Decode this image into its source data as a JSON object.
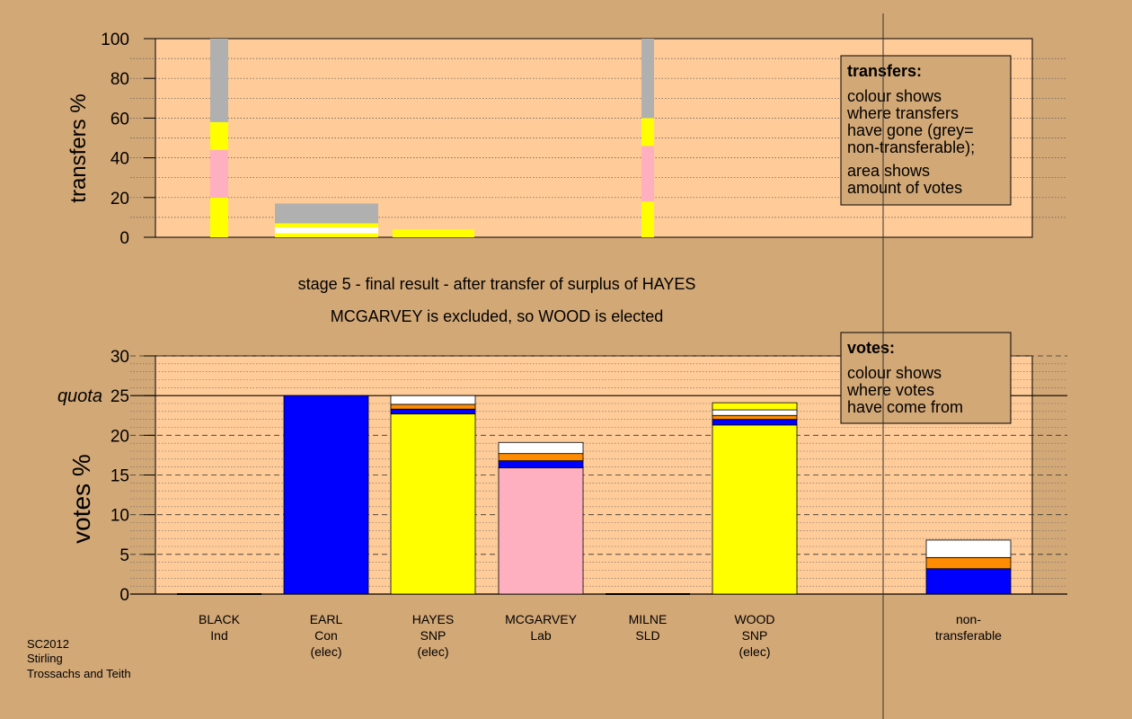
{
  "colors": {
    "page_bg": "#d3a877",
    "plot_bg": "#ffcc99",
    "frame": "#000000",
    "grey": "#b0b0b0",
    "yellow": "#ffff00",
    "pink": "#ffb0c0",
    "blue": "#0000ff",
    "orange": "#ff8c00",
    "white": "#ffffff"
  },
  "chart_data": [
    {
      "type": "bar",
      "variant": "stacked-width",
      "ylabel": "transfers %",
      "ylim": [
        0,
        100
      ],
      "yticks": [
        "0",
        "20",
        "40",
        "60",
        "80",
        "100"
      ],
      "grid": true,
      "bars": [
        {
          "label": "BLACK",
          "segments": [
            {
              "from": 0,
              "to": 20,
              "color": "yellow"
            },
            {
              "from": 20,
              "to": 44,
              "color": "pink"
            },
            {
              "from": 44,
              "to": 58,
              "color": "yellow"
            },
            {
              "from": 58,
              "to": 100,
              "color": "grey"
            }
          ]
        },
        {
          "label": "EARL",
          "segments": [
            {
              "from": 0,
              "to": 2,
              "color": "yellow"
            },
            {
              "from": 2,
              "to": 5,
              "color": "white"
            },
            {
              "from": 5,
              "to": 7,
              "color": "yellow"
            },
            {
              "from": 7,
              "to": 17,
              "color": "grey"
            }
          ]
        },
        {
          "label": "HAYES",
          "segments": [
            {
              "from": 0,
              "to": 4,
              "color": "yellow"
            }
          ]
        },
        {
          "label": "MILNE",
          "segments": [
            {
              "from": 0,
              "to": 18,
              "color": "yellow"
            },
            {
              "from": 18,
              "to": 46,
              "color": "pink"
            },
            {
              "from": 46,
              "to": 60,
              "color": "yellow"
            },
            {
              "from": 60,
              "to": 100,
              "color": "grey"
            }
          ]
        }
      ],
      "legend": {
        "position": "top-right",
        "title": "transfers:",
        "lines": [
          "colour shows",
          "where transfers",
          "have gone (grey=",
          "non-transferable);"
        ],
        "lines2": [
          "area shows",
          "amount of votes"
        ]
      }
    },
    {
      "type": "bar",
      "variant": "stacked",
      "ylabel": "votes %",
      "ylim": [
        0,
        30
      ],
      "yticks": [
        "0",
        "5",
        "10",
        "15",
        "20",
        "25",
        "30"
      ],
      "quota_label": "quota",
      "quota": 25,
      "grid": true,
      "title_line1": "stage 5 - final result - after transfer of surplus of HAYES",
      "title_line2": "MCGARVEY is excluded, so WOOD is elected",
      "bars": [
        {
          "name": "BLACK",
          "party": "Ind",
          "status": "",
          "segments": []
        },
        {
          "name": "EARL",
          "party": "Con",
          "status": "(elec)",
          "segments": [
            {
              "value": 25.0,
              "color": "blue"
            }
          ]
        },
        {
          "name": "HAYES",
          "party": "SNP",
          "status": "(elec)",
          "segments": [
            {
              "value": 22.7,
              "color": "yellow"
            },
            {
              "value": 0.6,
              "color": "blue"
            },
            {
              "value": 0.6,
              "color": "orange"
            },
            {
              "value": 1.1,
              "color": "white"
            }
          ]
        },
        {
          "name": "MCGARVEY",
          "party": "Lab",
          "status": "",
          "segments": [
            {
              "value": 15.9,
              "color": "pink"
            },
            {
              "value": 0.9,
              "color": "blue"
            },
            {
              "value": 0.9,
              "color": "orange"
            },
            {
              "value": 1.4,
              "color": "white"
            }
          ]
        },
        {
          "name": "MILNE",
          "party": "SLD",
          "status": "",
          "segments": []
        },
        {
          "name": "WOOD",
          "party": "SNP",
          "status": "(elec)",
          "segments": [
            {
              "value": 21.3,
              "color": "yellow"
            },
            {
              "value": 0.7,
              "color": "blue"
            },
            {
              "value": 0.5,
              "color": "orange"
            },
            {
              "value": 0.7,
              "color": "white"
            },
            {
              "value": 0.9,
              "color": "yellow"
            }
          ]
        },
        {
          "name": "non-",
          "party": "transferable",
          "status": "",
          "segments": [
            {
              "value": 3.2,
              "color": "blue"
            },
            {
              "value": 1.4,
              "color": "orange"
            },
            {
              "value": 2.2,
              "color": "white"
            }
          ]
        }
      ],
      "legend": {
        "position": "top-right",
        "title": "votes:",
        "lines": [
          "colour shows",
          "where votes",
          "have come from"
        ]
      }
    }
  ],
  "footer": [
    "SC2012",
    "Stirling",
    "Trossachs and Teith"
  ]
}
